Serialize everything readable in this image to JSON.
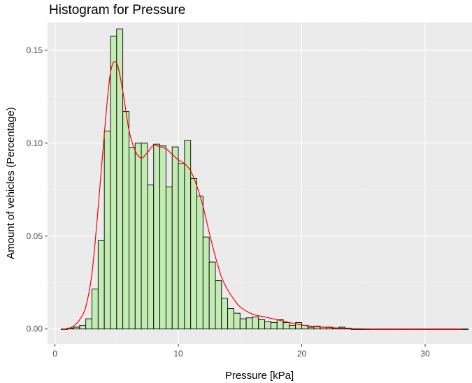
{
  "chart_data": {
    "type": "bar",
    "subtype": "histogram",
    "title": "Histogram for Pressure",
    "xlabel": "Pressure [kPa]",
    "ylabel": "Amount of vehicles (Percentage)",
    "xlim": [
      -0.6,
      33.8
    ],
    "ylim": [
      -0.008,
      0.165
    ],
    "x_ticks": [
      0,
      10,
      20,
      30
    ],
    "x_tick_labels": [
      "0",
      "10",
      "20",
      "30"
    ],
    "y_ticks": [
      0.0,
      0.05,
      0.1,
      0.15
    ],
    "y_tick_labels": [
      "0.00",
      "0.05",
      "0.10",
      "0.15"
    ],
    "grid": true,
    "legend": "none",
    "bin_width": 0.5,
    "bin_starts": [
      0.5,
      1.0,
      1.5,
      2.0,
      2.5,
      3.0,
      3.5,
      4.0,
      4.5,
      5.0,
      5.5,
      6.0,
      6.5,
      7.0,
      7.5,
      8.0,
      8.5,
      9.0,
      9.5,
      10.0,
      10.5,
      11.0,
      11.5,
      12.0,
      12.5,
      13.0,
      13.5,
      14.0,
      14.5,
      15.0,
      15.5,
      16.0,
      16.5,
      17.0,
      17.5,
      18.0,
      18.5,
      19.0,
      19.5,
      20.0,
      20.5,
      21.0,
      21.5,
      22.0,
      22.5,
      23.0,
      23.5,
      24.0,
      24.5,
      25.0,
      25.5,
      26.0,
      26.5,
      27.0,
      27.5,
      28.0,
      28.5,
      29.0,
      29.5,
      30.0,
      30.5,
      31.0,
      31.5,
      32.0,
      32.5,
      33.0
    ],
    "values": [
      0.0,
      0.0005,
      0.001,
      0.002,
      0.0055,
      0.0215,
      0.0475,
      0.1065,
      0.1575,
      0.1615,
      0.117,
      0.0975,
      0.1,
      0.1,
      0.0775,
      0.0995,
      0.0985,
      0.0765,
      0.098,
      0.089,
      0.1015,
      0.081,
      0.0715,
      0.0495,
      0.036,
      0.026,
      0.0165,
      0.011,
      0.0085,
      0.0055,
      0.006,
      0.0065,
      0.005,
      0.004,
      0.0035,
      0.005,
      0.0035,
      0.002,
      0.0035,
      0.002,
      0.001,
      0.0015,
      0.001,
      0.001,
      0.0005,
      0.001,
      0.0005,
      0.0,
      0.0,
      0.0,
      0.0,
      0.0,
      0.0,
      0.0,
      0.0,
      0.0,
      0.0,
      0.0,
      0.0,
      0.0,
      0.0,
      0.0,
      0.0,
      0.0,
      0.0,
      0.0
    ],
    "bar_fill": "#c2ecb3",
    "bar_edge": "#000000",
    "density_color": "#ff0000",
    "density": {
      "x": [
        0.6,
        1.0,
        1.5,
        2.0,
        2.5,
        3.0,
        3.5,
        4.0,
        4.5,
        5.0,
        5.5,
        6.0,
        6.5,
        7.0,
        7.5,
        8.0,
        8.5,
        9.0,
        9.5,
        10.0,
        10.5,
        11.0,
        11.5,
        12.0,
        12.5,
        13.0,
        13.5,
        14.0,
        14.5,
        15.0,
        16.0,
        17.0,
        18.0,
        19.0,
        20.0,
        21.0,
        22.0,
        23.0,
        24.0,
        25.0,
        26.0,
        28.0,
        30.0,
        32.0,
        33.0
      ],
      "y": [
        0.0,
        0.0002,
        0.0015,
        0.005,
        0.012,
        0.03,
        0.065,
        0.105,
        0.138,
        0.143,
        0.128,
        0.107,
        0.096,
        0.092,
        0.095,
        0.099,
        0.098,
        0.097,
        0.094,
        0.091,
        0.089,
        0.085,
        0.077,
        0.066,
        0.052,
        0.039,
        0.028,
        0.021,
        0.016,
        0.012,
        0.008,
        0.0065,
        0.005,
        0.0035,
        0.0022,
        0.0013,
        0.0009,
        0.0005,
        0.0002,
        0.0001,
        0.0,
        0.0,
        0.0,
        0.0,
        0.0
      ]
    }
  }
}
